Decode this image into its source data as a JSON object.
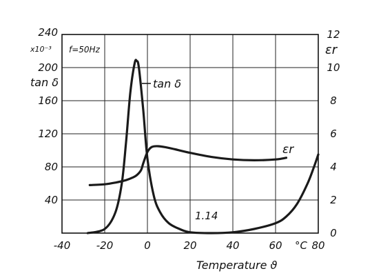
{
  "chart_data": {
    "type": "line",
    "xlabel": "Temperature ϑ",
    "x_tick_labels": [
      "-40",
      "-20",
      "0",
      "20",
      "40",
      "60",
      "80"
    ],
    "x_unit": "°C",
    "xlim": [
      -40,
      80
    ],
    "annotation_freq": "f=50Hz",
    "left_axis": {
      "label": "tan δ",
      "multiplier": "x10⁻³",
      "ylim": [
        0,
        240
      ],
      "tick_labels": [
        "40",
        "80",
        "120",
        "160",
        "200",
        "240"
      ]
    },
    "right_axis": {
      "label": "εr",
      "ylim": [
        0,
        12
      ],
      "tick_labels": [
        "0",
        "2",
        "4",
        "6",
        "8",
        "10",
        "12"
      ]
    },
    "figure_label": "1.14",
    "grid": true,
    "series": [
      {
        "name": "tan δ",
        "axis": "left",
        "x": [
          -28,
          -20,
          -15,
          -12,
          -10,
          -8,
          -6,
          -5,
          -4,
          -2,
          0,
          3,
          6,
          10,
          15,
          20,
          30,
          40,
          50,
          60,
          65,
          70,
          75,
          78,
          80
        ],
        "y": [
          0,
          5,
          25,
          60,
          110,
          170,
          205,
          208,
          200,
          150,
          90,
          45,
          25,
          12,
          5,
          1,
          0,
          1,
          5,
          12,
          20,
          35,
          60,
          80,
          95
        ]
      },
      {
        "name": "εr",
        "axis": "right",
        "x": [
          -27,
          -20,
          -15,
          -10,
          -7,
          -5,
          -3,
          -2,
          0,
          2,
          5,
          10,
          20,
          30,
          40,
          50,
          60,
          65
        ],
        "y": [
          2.9,
          2.95,
          3.05,
          3.2,
          3.35,
          3.5,
          3.8,
          4.2,
          4.9,
          5.2,
          5.25,
          5.15,
          4.85,
          4.6,
          4.45,
          4.4,
          4.45,
          4.55
        ]
      }
    ]
  }
}
